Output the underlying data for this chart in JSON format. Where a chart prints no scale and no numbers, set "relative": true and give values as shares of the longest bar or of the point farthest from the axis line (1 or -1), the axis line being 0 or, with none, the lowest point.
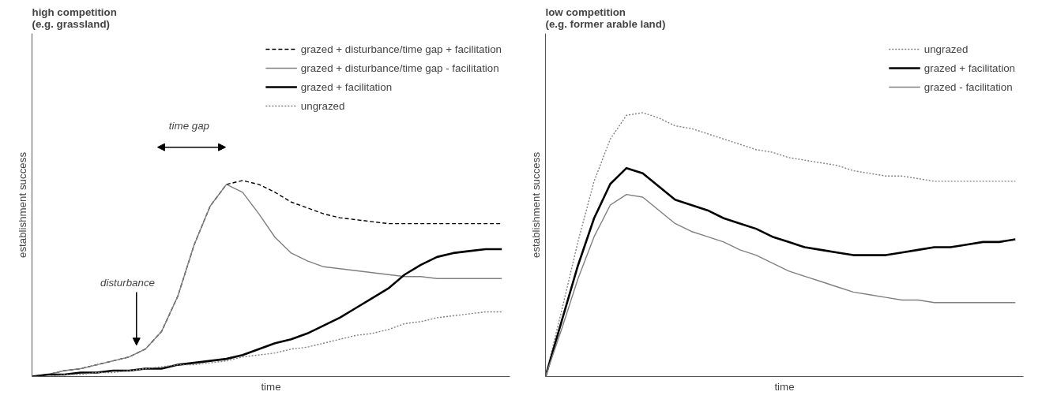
{
  "chart_data": [
    {
      "type": "line",
      "title": "high competition\n(e.g. grassland)",
      "xlabel": "time",
      "ylabel": "establishment success",
      "relative": true,
      "legend": "top right",
      "categories": [
        null,
        null,
        null,
        null,
        null,
        null,
        null,
        null,
        null,
        null,
        null,
        null,
        null,
        null,
        null,
        null,
        null,
        null,
        null,
        null,
        null,
        null,
        null,
        null,
        null,
        null,
        null,
        null,
        null,
        null
      ],
      "series": [
        {
          "name": "grazed + disturbance/time gap + facilitation",
          "color": "#000000",
          "line_style": "dashed",
          "values": [
            0,
            0.01,
            0.03,
            0.04,
            0.06,
            0.08,
            0.1,
            0.14,
            0.23,
            0.41,
            0.67,
            0.87,
            0.98,
            1,
            0.98,
            0.94,
            0.89,
            0.86,
            0.83,
            0.81,
            0.8,
            0.79,
            0.78,
            0.78,
            0.78,
            0.78,
            0.78,
            0.78,
            0.78,
            0.78
          ]
        },
        {
          "name": "grazed + disturbance/time gap - facilitation",
          "color": "#808080",
          "line_style": "solid",
          "values": [
            0,
            0.01,
            0.03,
            0.04,
            0.06,
            0.08,
            0.1,
            0.14,
            0.23,
            0.41,
            0.67,
            0.87,
            0.98,
            0.94,
            0.83,
            0.71,
            0.63,
            0.59,
            0.56,
            0.55,
            0.54,
            0.53,
            0.52,
            0.51,
            0.51,
            0.5,
            0.5,
            0.5,
            0.5,
            0.5
          ]
        },
        {
          "name": "grazed + facilitation",
          "color": "#000000",
          "line_style": "solid",
          "values": [
            0,
            0.01,
            0.01,
            0.02,
            0.02,
            0.03,
            0.03,
            0.04,
            0.04,
            0.06,
            0.07,
            0.08,
            0.09,
            0.11,
            0.14,
            0.17,
            0.19,
            0.22,
            0.26,
            0.3,
            0.35,
            0.4,
            0.45,
            0.52,
            0.57,
            0.61,
            0.63,
            0.64,
            0.65,
            0.65
          ]
        },
        {
          "name": "ungrazed",
          "color": "#808080",
          "line_style": "dotted",
          "values": [
            0,
            0,
            0.01,
            0.01,
            0.02,
            0.02,
            0.03,
            0.04,
            0.05,
            0.06,
            0.06,
            0.07,
            0.08,
            0.1,
            0.11,
            0.12,
            0.14,
            0.15,
            0.17,
            0.19,
            0.21,
            0.22,
            0.24,
            0.27,
            0.28,
            0.3,
            0.31,
            0.32,
            0.33,
            0.33
          ]
        }
      ],
      "annotations": [
        "disturbance",
        "time gap"
      ]
    },
    {
      "type": "line",
      "title": "low competition\n(e.g. former arable land)",
      "xlabel": "time",
      "ylabel": "establishment success",
      "relative": true,
      "legend": "top right",
      "categories": [
        null,
        null,
        null,
        null,
        null,
        null,
        null,
        null,
        null,
        null,
        null,
        null,
        null,
        null,
        null,
        null,
        null,
        null,
        null,
        null,
        null,
        null,
        null,
        null,
        null,
        null,
        null,
        null,
        null,
        null
      ],
      "series": [
        {
          "name": "ungrazed",
          "color": "#808080",
          "line_style": "dotted",
          "values": [
            0,
            0.25,
            0.51,
            0.74,
            0.9,
            0.99,
            1,
            0.98,
            0.95,
            0.94,
            0.92,
            0.9,
            0.88,
            0.86,
            0.85,
            0.83,
            0.82,
            0.81,
            0.8,
            0.78,
            0.77,
            0.76,
            0.76,
            0.75,
            0.74,
            0.74,
            0.74,
            0.74,
            0.74,
            0.74
          ]
        },
        {
          "name": "grazed + facilitation",
          "color": "#000000",
          "line_style": "solid",
          "values": [
            0,
            0.21,
            0.42,
            0.6,
            0.73,
            0.79,
            0.77,
            0.72,
            0.67,
            0.65,
            0.63,
            0.6,
            0.58,
            0.56,
            0.53,
            0.51,
            0.49,
            0.48,
            0.47,
            0.46,
            0.46,
            0.46,
            0.47,
            0.48,
            0.49,
            0.49,
            0.5,
            0.51,
            0.51,
            0.52
          ]
        },
        {
          "name": "grazed - facilitation",
          "color": "#808080",
          "line_style": "solid",
          "values": [
            0,
            0.18,
            0.37,
            0.53,
            0.65,
            0.69,
            0.68,
            0.63,
            0.58,
            0.55,
            0.53,
            0.51,
            0.48,
            0.46,
            0.43,
            0.4,
            0.38,
            0.36,
            0.34,
            0.32,
            0.31,
            0.3,
            0.29,
            0.29,
            0.28,
            0.28,
            0.28,
            0.28,
            0.28,
            0.28
          ]
        }
      ]
    }
  ]
}
